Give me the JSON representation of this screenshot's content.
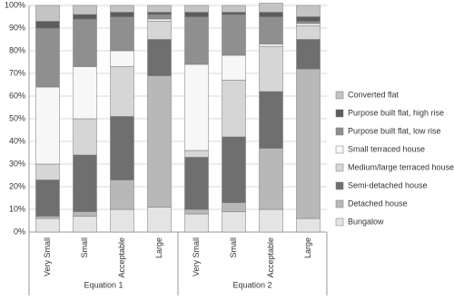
{
  "chart_data": {
    "type": "bar",
    "stacked": true,
    "categories": [
      "Very Small",
      "Small",
      "Acceptable",
      "Large",
      "Very Small",
      "Small",
      "Acceptable",
      "Large"
    ],
    "groups": [
      "Equation 1",
      "Equation 2"
    ],
    "ylim": [
      0,
      100
    ],
    "yticks": [
      {
        "value": 0,
        "label": "0%"
      },
      {
        "value": 10,
        "label": "10%"
      },
      {
        "value": 20,
        "label": "20%"
      },
      {
        "value": 30,
        "label": "30%"
      },
      {
        "value": 40,
        "label": "40%"
      },
      {
        "value": 50,
        "label": "50%"
      },
      {
        "value": 60,
        "label": "60%"
      },
      {
        "value": 70,
        "label": "70%"
      },
      {
        "value": 80,
        "label": "80%"
      },
      {
        "value": 90,
        "label": "90%"
      },
      {
        "value": 100,
        "label": "100%"
      }
    ],
    "legend": "right",
    "series": [
      {
        "name": "Bungalow",
        "color": "#e4e4e4",
        "values": [
          6,
          7,
          10,
          11,
          8,
          9,
          10,
          6
        ]
      },
      {
        "name": "Detached house",
        "color": "#b8b8b8",
        "values": [
          1,
          2,
          13,
          58,
          2,
          4,
          27,
          66
        ]
      },
      {
        "name": "Semi-detached house",
        "color": "#6f6f6f",
        "values": [
          16,
          25,
          28,
          16,
          23,
          29,
          25,
          13
        ]
      },
      {
        "name": "Medium/large terraced house",
        "color": "#d6d6d6",
        "values": [
          7,
          16,
          22,
          8,
          3,
          25,
          20,
          6
        ]
      },
      {
        "name": "Small terraced house",
        "color": "#f7f7f7",
        "values": [
          34,
          23,
          7,
          1,
          38,
          11,
          1,
          1
        ]
      },
      {
        "name": "Purpose built flat, low rise",
        "color": "#8f8f8f",
        "values": [
          26,
          21,
          15,
          2,
          21,
          18,
          12,
          1
        ]
      },
      {
        "name": "Purpose built flat, high rise",
        "color": "#5c5c5c",
        "values": [
          3,
          2,
          2,
          1,
          2,
          1,
          2,
          2
        ]
      },
      {
        "name": "Converted flat",
        "color": "#c4c4c4",
        "values": [
          7,
          4,
          3,
          3,
          3,
          3,
          4,
          5
        ]
      }
    ]
  }
}
